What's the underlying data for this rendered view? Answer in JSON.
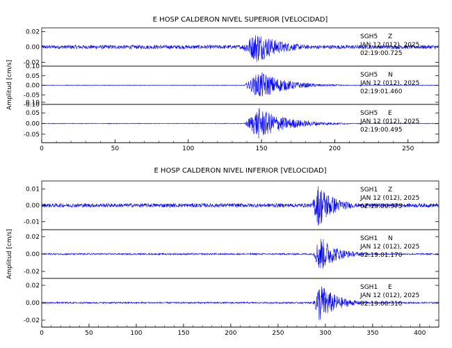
{
  "chart_data": [
    {
      "type": "line",
      "title": "E HOSP CALDERON NIVEL SUPERIOR [VELOCIDAD]",
      "ylabel": "Amplitud [cm/s]",
      "xlim": [
        0,
        271
      ],
      "xticks": [
        "0",
        "50",
        "100",
        "150",
        "200",
        "250"
      ],
      "trace_color": "#0000ff",
      "panels": [
        {
          "ylim": [
            -0.025,
            0.025
          ],
          "yticks": [
            "0.02",
            "0.00",
            "-0.02"
          ],
          "station": "SGH5",
          "component": "Z",
          "date": "JAN 12 (012), 2025",
          "time": "02:19:00.725",
          "noise_amp": 0.0025,
          "event_start": 135,
          "event_peak": 147,
          "event_end": 200,
          "peak_amp": 0.021
        },
        {
          "ylim": [
            -0.1,
            0.1
          ],
          "yticks": [
            "0.10",
            "0.05",
            "0.00",
            "-0.05",
            "-0.10"
          ],
          "station": "SGH5",
          "component": "N",
          "date": "JAN 12 (012), 2025",
          "time": "02:19:01.460",
          "noise_amp": 0.0015,
          "event_start": 138,
          "event_peak": 149,
          "event_end": 205,
          "peak_amp": 0.075
        },
        {
          "ylim": [
            -0.09,
            0.09
          ],
          "yticks": [
            "0.10",
            "0.05",
            "0.00",
            "-0.05"
          ],
          "station": "SGH5",
          "component": "E",
          "date": "JAN 12 (012), 2025",
          "time": "02:19:00.495",
          "noise_amp": 0.0015,
          "event_start": 138,
          "event_peak": 148,
          "event_end": 210,
          "peak_amp": 0.075
        }
      ]
    },
    {
      "type": "line",
      "title": "E HOSP CALDERON NIVEL INFERIOR [VELOCIDAD]",
      "ylabel": "Amplitud [cm/s]",
      "xlim": [
        0,
        420
      ],
      "xticks": [
        "0",
        "50",
        "100",
        "150",
        "200",
        "250",
        "300",
        "350",
        "400"
      ],
      "trace_color": "#0000ff",
      "panels": [
        {
          "ylim": [
            -0.015,
            0.015
          ],
          "yticks": [
            "0.01",
            "0.00",
            "-0.01"
          ],
          "station": "SGH1",
          "component": "Z",
          "date": "JAN 12 (012), 2025",
          "time": "02:19:00.975",
          "noise_amp": 0.0012,
          "event_start": 285,
          "event_peak": 293,
          "event_end": 345,
          "peak_amp": 0.014
        },
        {
          "ylim": [
            -0.028,
            0.028
          ],
          "yticks": [
            "0.02",
            "0.00",
            "-0.02"
          ],
          "station": "SGH1",
          "component": "N",
          "date": "JAN 12 (012), 2025",
          "time": "02:19:01.170",
          "noise_amp": 0.0009,
          "event_start": 287,
          "event_peak": 294,
          "event_end": 350,
          "peak_amp": 0.022
        },
        {
          "ylim": [
            -0.028,
            0.028
          ],
          "yticks": [
            "0.02",
            "0.00",
            "-0.02"
          ],
          "station": "SGH1",
          "component": "E",
          "date": "JAN 12 (012), 2025",
          "time": "02:19:00.310",
          "noise_amp": 0.0009,
          "event_start": 287,
          "event_peak": 294,
          "event_end": 350,
          "peak_amp": 0.024
        }
      ]
    }
  ]
}
